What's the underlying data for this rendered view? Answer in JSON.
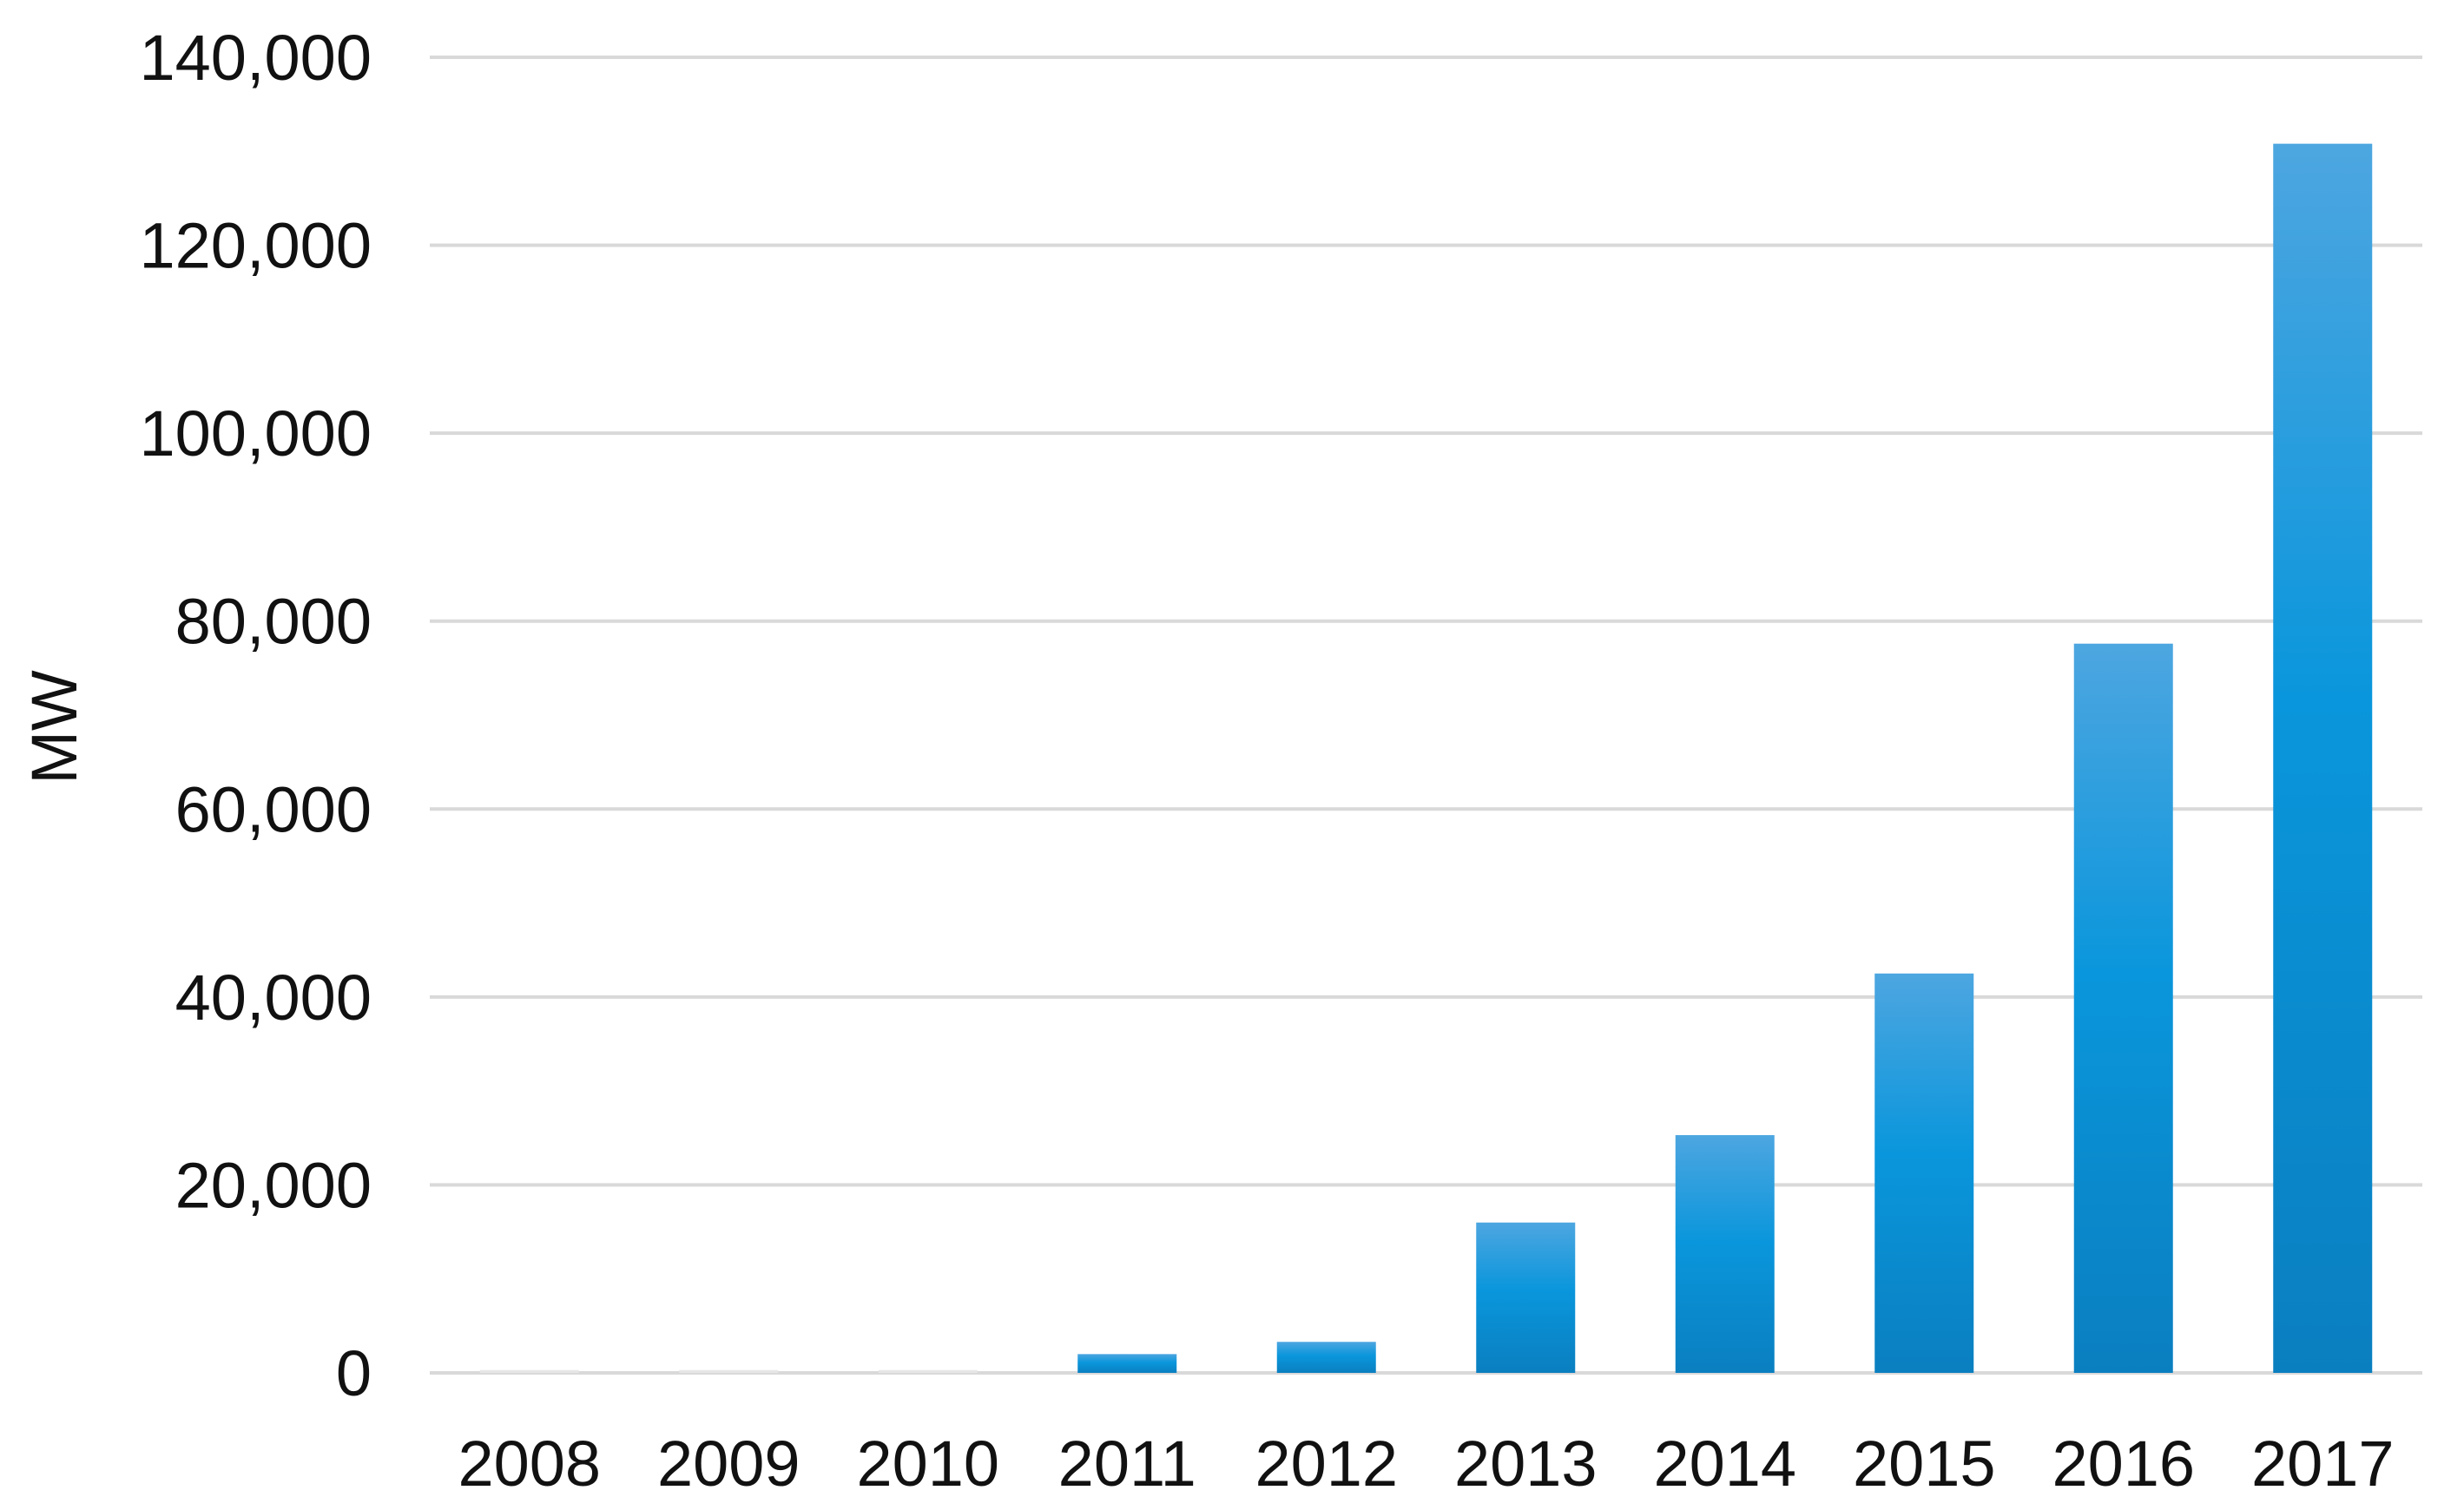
{
  "chart_data": {
    "type": "bar",
    "title": "",
    "xlabel": "",
    "ylabel": "MW",
    "categories": [
      "2008",
      "2009",
      "2010",
      "2011",
      "2012",
      "2013",
      "2014",
      "2015",
      "2016",
      "2017"
    ],
    "values": [
      300,
      300,
      300,
      2000,
      3300,
      16000,
      25300,
      42500,
      77600,
      130800
    ],
    "ylim": [
      0,
      140000
    ],
    "yticks": [
      0,
      20000,
      40000,
      60000,
      80000,
      100000,
      120000,
      140000
    ],
    "ytick_labels": [
      "0",
      "20,000",
      "40,000",
      "60,000",
      "80,000",
      "100,000",
      "120,000",
      "140,000"
    ],
    "grid": true,
    "legend": "none",
    "colors": {
      "bar_top": "#4da6e0",
      "bar_mid": "#0a96dc",
      "bar_bottom": "#0a7fc0",
      "grid": "#d9d9d9",
      "text": "#111111"
    }
  }
}
